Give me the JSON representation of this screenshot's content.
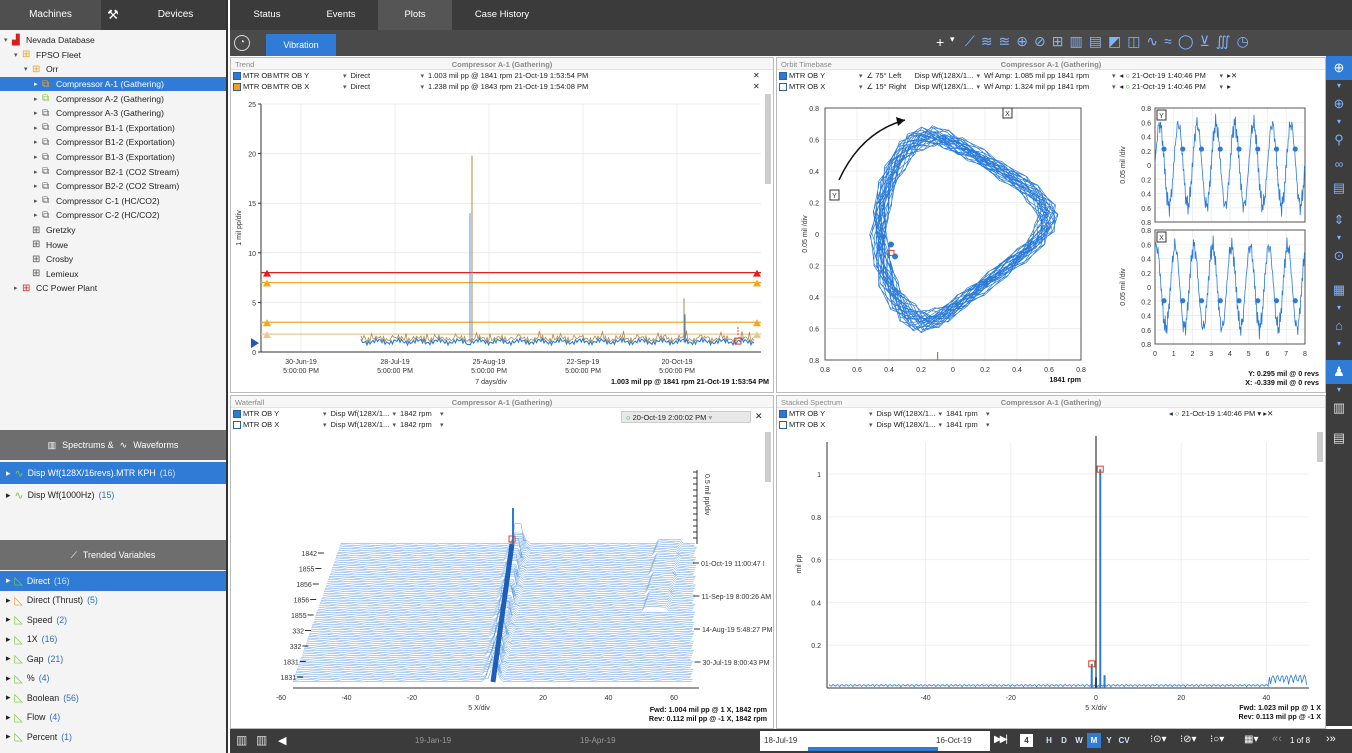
{
  "left_tabs": {
    "machines": "Machines",
    "devices": "Devices"
  },
  "tree": [
    {
      "label": "Nevada Database",
      "level": 0,
      "icon": "factory-icon",
      "arrow": "▾"
    },
    {
      "label": "FPSO Fleet",
      "level": 1,
      "icon": "grid-icon",
      "arrow": "▾"
    },
    {
      "label": "Orr",
      "level": 2,
      "icon": "grid-icon",
      "arrow": "▾"
    },
    {
      "label": "Compressor A-1 (Gathering)",
      "level": 3,
      "icon": "compressor-icon",
      "arrow": "▸",
      "selected": true
    },
    {
      "label": "Compressor A-2 (Gathering)",
      "level": 3,
      "icon": "compressor-icon",
      "arrow": "▸"
    },
    {
      "label": "Compressor A-3 (Gathering)",
      "level": 3,
      "icon": "compressor-icon",
      "arrow": "▸"
    },
    {
      "label": "Compressor B1-1 (Exportation)",
      "level": 3,
      "icon": "compressor-icon",
      "arrow": "▸"
    },
    {
      "label": "Compressor B1-2 (Exportation)",
      "level": 3,
      "icon": "compressor-icon",
      "arrow": "▸"
    },
    {
      "label": "Compressor B1-3 (Exportation)",
      "level": 3,
      "icon": "compressor-icon",
      "arrow": "▸"
    },
    {
      "label": "Compressor B2-1 (CO2 Stream)",
      "level": 3,
      "icon": "compressor-icon",
      "arrow": "▸"
    },
    {
      "label": "Compressor B2-2 (CO2 Stream)",
      "level": 3,
      "icon": "compressor-icon",
      "arrow": "▸"
    },
    {
      "label": "Compressor C-1 (HC/CO2)",
      "level": 3,
      "icon": "compressor-icon",
      "arrow": "▸"
    },
    {
      "label": "Compressor C-2 (HC/CO2)",
      "level": 3,
      "icon": "compressor-icon",
      "arrow": "▸"
    },
    {
      "label": "Gretzky",
      "level": 2,
      "icon": "grid-icon",
      "arrow": ""
    },
    {
      "label": "Howe",
      "level": 2,
      "icon": "grid-icon",
      "arrow": ""
    },
    {
      "label": "Crosby",
      "level": 2,
      "icon": "grid-icon",
      "arrow": ""
    },
    {
      "label": "Lemieux",
      "level": 2,
      "icon": "grid-icon",
      "arrow": ""
    },
    {
      "label": "CC Power Plant",
      "level": 1,
      "icon": "grid-icon",
      "arrow": "▸"
    }
  ],
  "spectrums_header": {
    "a": "Spectrums &",
    "b": "Waveforms"
  },
  "spectrums": [
    {
      "label": "Disp Wf(128X/16revs).MTR KPH",
      "count": "(16)",
      "selected": true
    },
    {
      "label": "Disp Wf(1000Hz)",
      "count": "(15)"
    }
  ],
  "trended_header": "Trended Variables",
  "trended": [
    {
      "label": "Direct",
      "count": "(16)",
      "selected": true
    },
    {
      "label": "Direct (Thrust)",
      "count": "(5)"
    },
    {
      "label": "Speed",
      "count": "(2)"
    },
    {
      "label": "1X",
      "count": "(16)"
    },
    {
      "label": "Gap",
      "count": "(21)"
    },
    {
      "label": "%",
      "count": "(4)"
    },
    {
      "label": "Boolean",
      "count": "(56)"
    },
    {
      "label": "Flow",
      "count": "(4)"
    },
    {
      "label": "Percent",
      "count": "(1)"
    }
  ],
  "main_tabs": [
    "Status",
    "Events",
    "Plots",
    "Case History"
  ],
  "active_main_tab": "Plots",
  "sub_tab": "Vibration",
  "trend": {
    "title_left": "Trend",
    "title_center": "Compressor A-1 (Gathering)",
    "rows": [
      {
        "a": "MTR OB",
        "b": "MTR OB Y",
        "c": "Direct",
        "d": "1.003 mil pp @ 1841 rpm 21-Oct-19 1:53:54 PM"
      },
      {
        "a": "MTR OB",
        "b": "MTR OB X",
        "c": "Direct",
        "d": "1.238 mil pp @ 1843 rpm 21-Oct-19 1:54:08 PM"
      }
    ],
    "ylabel": "1 mil pp/div",
    "yticks": [
      "25",
      "20",
      "15",
      "10",
      "5",
      "0"
    ],
    "xticks": [
      [
        "30-Jun-19",
        "5:00:00 PM"
      ],
      [
        "28-Jul-19",
        "5:00:00 PM"
      ],
      [
        "25-Aug-19",
        "5:00:00 PM"
      ],
      [
        "22-Sep-19",
        "5:00:00 PM"
      ],
      [
        "20-Oct-19",
        "5:00:00 PM"
      ]
    ],
    "xunit": "7 days/div",
    "readout": "1.003 mil pp @ 1841 rpm 21-Oct-19 1:53:54 PM"
  },
  "orbit": {
    "title_left": "Orbit Timebase",
    "title_center": "Compressor A-1 (Gathering)",
    "rows": [
      {
        "a": "MTR OB Y",
        "b": "∠ 75° Left",
        "c": "Disp Wf(128X/1...",
        "d": "Wf Amp: 1.085 mil pp 1841 rpm",
        "e": "21-Oct-19 1:40:46 PM"
      },
      {
        "a": "MTR OB X",
        "b": "∠ 15° Right",
        "c": "Disp Wf(128X/1...",
        "d": "Wf Amp: 1.324 mil pp 1841 rpm",
        "e": "21-Oct-19 1:40:46 PM"
      }
    ],
    "ylabel": "0.05 mil /div",
    "yticks": [
      "0.8",
      "0.6",
      "0.4",
      "0.2",
      "0",
      "0.2",
      "0.4",
      "0.6",
      "0.8"
    ],
    "xticks": [
      "0.8",
      "0.6",
      "0.4",
      "0.2",
      "0",
      "0.2",
      "0.4",
      "0.6",
      "0.8"
    ],
    "xunit": "1841 rpm",
    "timebase_yticks": [
      "0.8",
      "0.6",
      "0.4",
      "0.2",
      "0",
      "0.2",
      "0.4",
      "0.6",
      "0.8"
    ],
    "timebase_xticks": [
      "0",
      "1",
      "2",
      "3",
      "4",
      "5",
      "6",
      "7",
      "8"
    ],
    "readout_y": "Y: 0.295 mil @ 0 revs",
    "readout_x": "X: -0.339 mil @ 0 revs",
    "marker_y": "Y",
    "marker_x": "X"
  },
  "waterfall": {
    "title_left": "Waterfall",
    "title_center": "Compressor A-1 (Gathering)",
    "rows": [
      {
        "a": "MTR OB Y",
        "b": "Disp Wf(128X/1...",
        "c": "1842 rpm"
      },
      {
        "a": "MTR OB X",
        "b": "Disp Wf(128X/1...",
        "c": "1842 rpm"
      }
    ],
    "date_sel": "20-Oct-19 2:00:02 PM",
    "zlabels": [
      "1842",
      "1855",
      "1856",
      "1856",
      "1855",
      "332",
      "332",
      "1831",
      "1831"
    ],
    "date_ticks": [
      "01-Oct-19 11:00:47 I",
      "11-Sep-19 8:00:26 AM",
      "14-Aug-19 5:48:27 PM",
      "30-Jul-19 8:00:43 PM"
    ],
    "xticks": [
      "-60",
      "-40",
      "-20",
      "0",
      "20",
      "40",
      "60"
    ],
    "xunit": "5 X/div",
    "amp_label": "0.5 mil pp/div",
    "readout_fwd": "Fwd: 1.004 mil pp @ 1 X, 1842 rpm",
    "readout_rev": "Rev: 0.112 mil pp @ -1 X, 1842 rpm"
  },
  "stacked": {
    "title_left": "Stacked Spectrum",
    "title_center": "Compressor A-1 (Gathering)",
    "rows": [
      {
        "a": "MTR OB Y",
        "b": "Disp Wf(128X/1...",
        "c": "1841 rpm",
        "d": "21-Oct-19 1:40:46 PM"
      },
      {
        "a": "MTR OB X",
        "b": "Disp Wf(128X/1...",
        "c": "1841 rpm",
        "d": ""
      }
    ],
    "ylabel": "mil pp",
    "yticks": [
      "1",
      "0.8",
      "0.6",
      "0.4",
      "0.2"
    ],
    "xticks": [
      "-40",
      "-20",
      "0",
      "20",
      "40"
    ],
    "xunit": "5 X/div",
    "readout_fwd": "Fwd: 1.023 mil pp @ 1 X",
    "readout_rev": "Rev: 0.113 mil pp @ -1 X"
  },
  "timeline": {
    "dates": [
      "19-Jan-19",
      "19-Apr-19",
      "18-Jul-19",
      "16-Oct-19"
    ],
    "page_num": "4",
    "ranges": [
      "H",
      "D",
      "W",
      "M",
      "Y",
      "CV"
    ],
    "active_range": "M",
    "pager": "1 of 8"
  },
  "colors": {
    "accent": "#2f7bd6",
    "trace": "#2a7bd8",
    "alarm_red": "#e02020",
    "alarm_orange": "#f5a623"
  }
}
